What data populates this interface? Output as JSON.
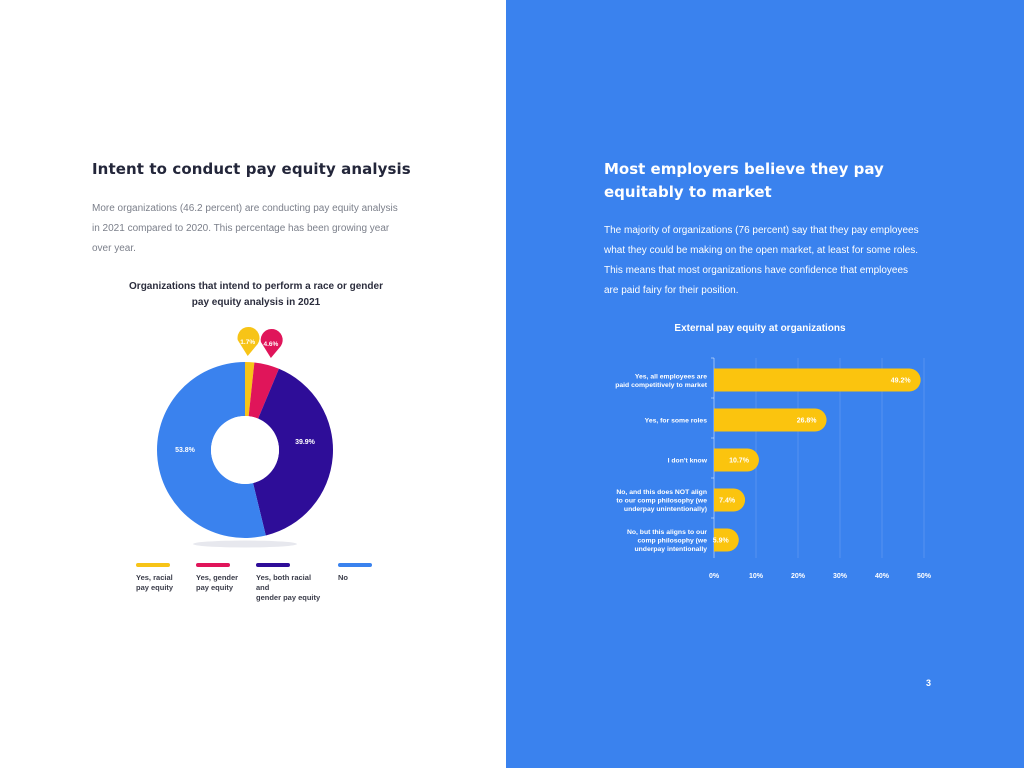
{
  "left": {
    "title": "Intent to conduct pay equity analysis",
    "body": "More organizations (46.2 percent) are conducting pay equity analysis in 2021 compared to 2020. This percentage has been growing year over year."
  },
  "right": {
    "title": "Most employers believe they pay equitably to market",
    "body": "The majority of organizations (76 percent) say that they pay employees what they could be making on the open market, at least for some roles. This means that most organizations have confidence that employees are paid fairy for their position."
  },
  "page_number": "3",
  "chart_data": [
    {
      "type": "pie",
      "title": "Organizations that intend to perform a race or gender pay equity analysis in 2021",
      "categories": [
        "Yes, racial pay equity",
        "Yes, gender pay equity",
        "Yes, both racial and gender pay equity",
        "No"
      ],
      "legend": [
        [
          "Yes, racial",
          "pay equity"
        ],
        [
          "Yes, gender",
          "pay equity"
        ],
        [
          "Yes, both racial and",
          "gender pay equity"
        ],
        [
          "No"
        ]
      ],
      "values": [
        1.7,
        4.6,
        39.9,
        53.8
      ],
      "labels": [
        "1.7%",
        "4.6%",
        "39.9%",
        "53.8%"
      ],
      "colors": [
        "#f7c417",
        "#e0155a",
        "#2e0d98",
        "#3a82ee"
      ],
      "hole": true,
      "legend_position": "bottom"
    },
    {
      "type": "bar",
      "orientation": "horizontal",
      "title": "External pay equity at organizations",
      "categories": [
        [
          "Yes, all employees are",
          "paid competitively to market"
        ],
        [
          "Yes, for some roles"
        ],
        [
          "I don't know"
        ],
        [
          "No, and this does NOT align",
          "to our comp philosophy (we",
          "underpay unintentionally)"
        ],
        [
          "No, but this aligns to our",
          "comp philosophy (we",
          "underpay intentionally"
        ]
      ],
      "values": [
        49.2,
        26.8,
        10.7,
        7.4,
        5.9
      ],
      "labels": [
        "49.2%",
        "26.8%",
        "10.7%",
        "7.4%",
        "5.9%"
      ],
      "xticks": [
        "0%",
        "10%",
        "20%",
        "30%",
        "40%",
        "50%"
      ],
      "xlim": [
        0,
        50
      ],
      "bar_color": "#fbc40e",
      "grid": true
    }
  ]
}
